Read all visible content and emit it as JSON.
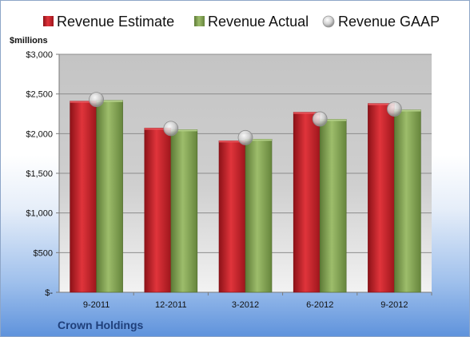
{
  "chart_data": {
    "type": "bar",
    "categories": [
      "9-2011",
      "12-2011",
      "3-2012",
      "6-2012",
      "9-2012"
    ],
    "series": [
      {
        "name": "Revenue Estimate",
        "values": [
          2410,
          2070,
          1910,
          2270,
          2380
        ],
        "color": "#c8262d"
      },
      {
        "name": "Revenue Actual",
        "values": [
          2420,
          2050,
          1930,
          2180,
          2300
        ],
        "color": "#8aac5a"
      },
      {
        "name": "Revenue GAAP",
        "values": [
          2430,
          2065,
          1950,
          2185,
          2310
        ],
        "color": "#bfbfbf",
        "marker": "circle"
      }
    ],
    "ylabel": "$millions",
    "ylim": [
      0,
      3000
    ],
    "yticks": [
      0,
      500,
      1000,
      1500,
      2000,
      2500,
      3000
    ],
    "ytick_labels": [
      "$-",
      "$500",
      "$1,000",
      "$1,500",
      "$2,000",
      "$2,500",
      "$3,000"
    ],
    "grid": true,
    "legend": "top"
  },
  "company": "Crown Holdings"
}
